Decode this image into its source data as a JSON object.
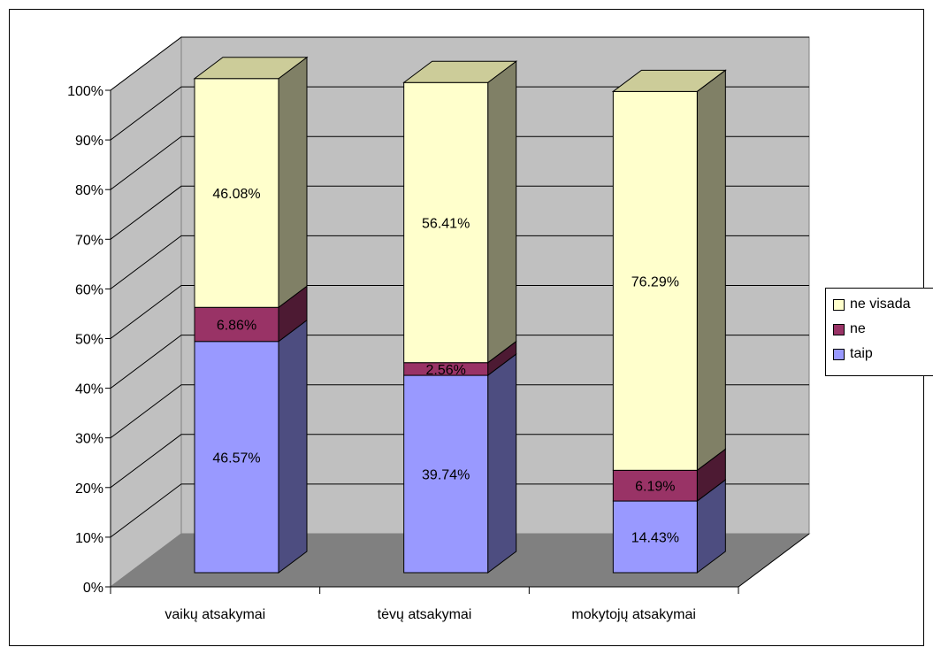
{
  "chart_data": {
    "type": "bar",
    "stacked": true,
    "three_d": true,
    "categories": [
      "vaikų atsakymai",
      "tėvų atsakymai",
      "mokytojų atsakymai"
    ],
    "series": [
      {
        "name": "taip",
        "values": [
          46.57,
          39.74,
          14.43
        ],
        "labels": [
          "46.57%",
          "39.74%",
          "14.43%"
        ]
      },
      {
        "name": "ne",
        "values": [
          6.86,
          2.56,
          6.19
        ],
        "labels": [
          "6.86%",
          "2.56%",
          "6.19%"
        ]
      },
      {
        "name": "ne visada",
        "values": [
          46.08,
          56.41,
          76.29
        ],
        "labels": [
          "46.08%",
          "56.41%",
          "76.29%"
        ]
      }
    ],
    "y_ticks": [
      "0%",
      "10%",
      "20%",
      "30%",
      "40%",
      "50%",
      "60%",
      "70%",
      "80%",
      "90%",
      "100%"
    ],
    "ylim": [
      0,
      100
    ],
    "grid": true,
    "legend_position": "right",
    "legend_order": [
      "ne visada",
      "ne",
      "taip"
    ],
    "colors": {
      "taip": "#9999ff",
      "taip_side": "#4d4d80",
      "ne": "#993366",
      "ne_side": "#4d1a33",
      "ne visada": "#ffffcc",
      "ne visada_side": "#808066",
      "wall": "#c0c0c0",
      "floor": "#808080",
      "grid": "#000000"
    }
  }
}
